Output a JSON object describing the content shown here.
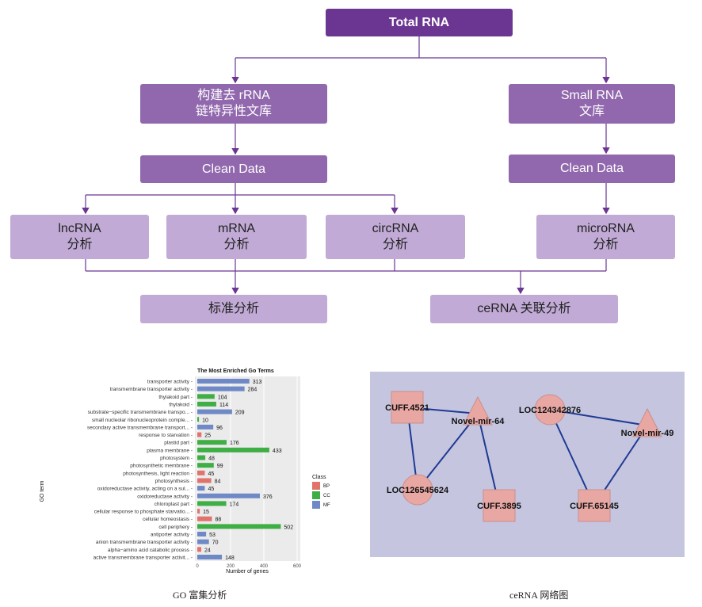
{
  "flow": {
    "total": "Total RNA",
    "lib_long": "构建去 rRNA\n链特异性文库",
    "lib_small": "Small RNA\n文库",
    "clean_left": "Clean Data",
    "clean_right": "Clean Data",
    "lncrna": "lncRNA\n分析",
    "mrna": "mRNA\n分析",
    "circrna": "circRNA\n分析",
    "microrna": "microRNA\n分析",
    "standard": "标准分析",
    "cerna": "ceRNA 关联分析"
  },
  "colors": {
    "dark": "#6b3592",
    "mid": "#9168ad",
    "light": "#c1aad5",
    "BP": "#e0736c",
    "CC": "#3fae45",
    "MF": "#6f89c7",
    "network_bg": "#c5c5e0",
    "node": "#e8a7a3",
    "edge": "#1f3a93"
  },
  "chart_data": {
    "type": "bar",
    "orientation": "horizontal",
    "title": "The Most Enriched Go Terms",
    "xlabel": "Number of genes",
    "ylabel": "GO term",
    "xlim": [
      0,
      620
    ],
    "xticks": [
      0,
      200,
      400,
      600
    ],
    "grid": true,
    "legend": {
      "title": "Class",
      "placement": "right",
      "entries": [
        "BP",
        "CC",
        "MF"
      ]
    },
    "categories": [
      "transporter activity",
      "transmembrane transporter activity",
      "thylakoid part",
      "thylakoid",
      "substrate−specific transmembrane transpo...",
      "small nucleolar ribonucleoprotein comple...",
      "secondary active transmembrane transport...",
      "response to starvation",
      "plastid part",
      "plasma membrane",
      "photosystem",
      "photosynthetic membrane",
      "photosynthesis, light reaction",
      "photosynthesis",
      "oxidoreductase activity, acting on a sul...",
      "oxidoreductase activity",
      "chloroplast part",
      "cellular response to phosphate starvatio...",
      "cellular homeostasis",
      "cell periphery",
      "antiporter activity",
      "anion transmembrane transporter activity",
      "alpha−amino acid catabolic process",
      "active transmembrane transporter activit..."
    ],
    "values": [
      313,
      284,
      104,
      114,
      209,
      10,
      96,
      25,
      176,
      433,
      48,
      99,
      45,
      84,
      45,
      376,
      174,
      15,
      88,
      502,
      53,
      70,
      24,
      148
    ],
    "classes": [
      "MF",
      "MF",
      "CC",
      "CC",
      "MF",
      "CC",
      "MF",
      "BP",
      "CC",
      "CC",
      "CC",
      "CC",
      "BP",
      "BP",
      "MF",
      "MF",
      "CC",
      "BP",
      "BP",
      "CC",
      "MF",
      "MF",
      "BP",
      "MF"
    ]
  },
  "network": {
    "nodes": [
      {
        "label": "CUFF.4521",
        "shape": "square"
      },
      {
        "label": "Novel-mir-64",
        "shape": "triangle"
      },
      {
        "label": "LOC126545624",
        "shape": "circle"
      },
      {
        "label": "CUFF.3895",
        "shape": "square"
      },
      {
        "label": "LOC124342876",
        "shape": "circle"
      },
      {
        "label": "Novel-mir-49",
        "shape": "triangle"
      },
      {
        "label": "CUFF.65145",
        "shape": "square"
      }
    ],
    "edges": [
      [
        0,
        1
      ],
      [
        0,
        2
      ],
      [
        1,
        2
      ],
      [
        1,
        3
      ],
      [
        4,
        5
      ],
      [
        4,
        6
      ],
      [
        5,
        6
      ]
    ]
  },
  "captions": {
    "go": "GO 富集分析",
    "cerna": "ceRNA 网络图"
  }
}
